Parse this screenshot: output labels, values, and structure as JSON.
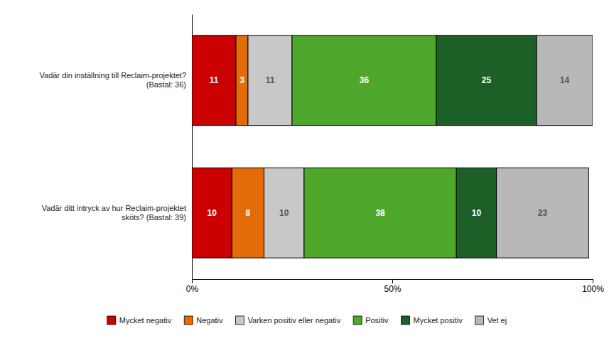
{
  "chart_data": {
    "type": "bar",
    "orientation": "horizontal",
    "stacked": true,
    "data_labels": true,
    "grid": false,
    "legend": "bottom",
    "categories": [
      "Vadär ditt intryck av hur Reclaim-projektet\nsköts? (Bastal: 39)",
      "Vadär din inställning till Reclaim-projektet?\n(Bastal: 36)"
    ],
    "series": [
      {
        "name": "Mycket negativ",
        "color": "#CC0000",
        "values": [
          10,
          11
        ]
      },
      {
        "name": "Negativ",
        "color": "#E36C09",
        "values": [
          8,
          3
        ]
      },
      {
        "name": "Varken positiv eller negativ",
        "color": "#C8C8C8",
        "values": [
          10,
          11
        ]
      },
      {
        "name": "Positiv",
        "color": "#4EA72A",
        "values": [
          38,
          36
        ]
      },
      {
        "name": "Mycket positiv",
        "color": "#1D6027",
        "values": [
          10,
          25
        ]
      },
      {
        "name": "Vet ej",
        "color": "#B8B8B8",
        "values": [
          23,
          14
        ]
      }
    ],
    "xlim": [
      0,
      100
    ],
    "xticks": [
      {
        "value": 0,
        "label": "0%"
      },
      {
        "value": 50,
        "label": "50%"
      },
      {
        "value": 100,
        "label": "100%"
      }
    ]
  }
}
